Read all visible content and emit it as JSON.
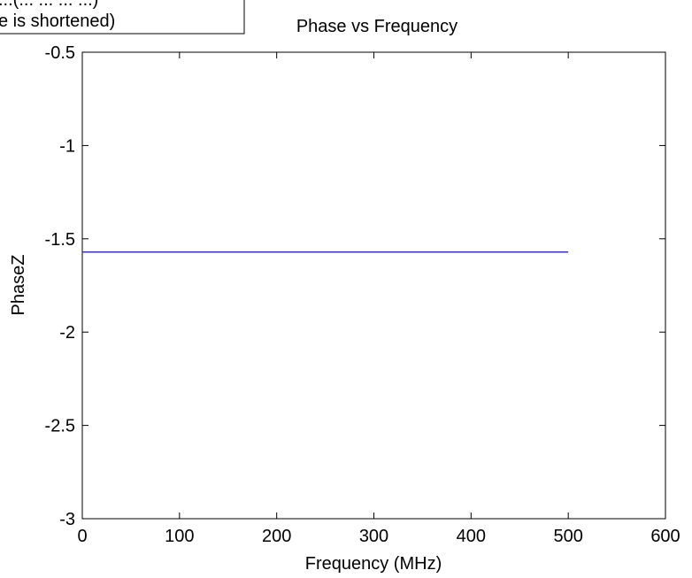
{
  "chart_data": {
    "type": "line",
    "title": "Phase vs Frequency",
    "xlabel": "Frequency (MHz)",
    "ylabel": "PhaseZ",
    "xlim": [
      0,
      600
    ],
    "ylim": [
      -3,
      -0.5
    ],
    "x_ticks": [
      0,
      100,
      200,
      300,
      400,
      500,
      600
    ],
    "y_ticks": [
      -3,
      -2.5,
      -2,
      -1.5,
      -1,
      -0.5
    ],
    "x_tick_labels": [
      "0",
      "100",
      "200",
      "300",
      "400",
      "500",
      "600"
    ],
    "y_tick_labels": [
      "-3",
      "-2.5",
      "-2",
      "-1.5",
      "-1",
      "-0.5"
    ],
    "grid": false,
    "series": [
      {
        "x": [
          0,
          500
        ],
        "y": [
          -1.5708,
          -1.5708
        ],
        "color": "#3b2fbf"
      }
    ],
    "annotation": {
      "lines": [
        "...(... ... ... ...)",
        "e is shortened)"
      ]
    }
  }
}
